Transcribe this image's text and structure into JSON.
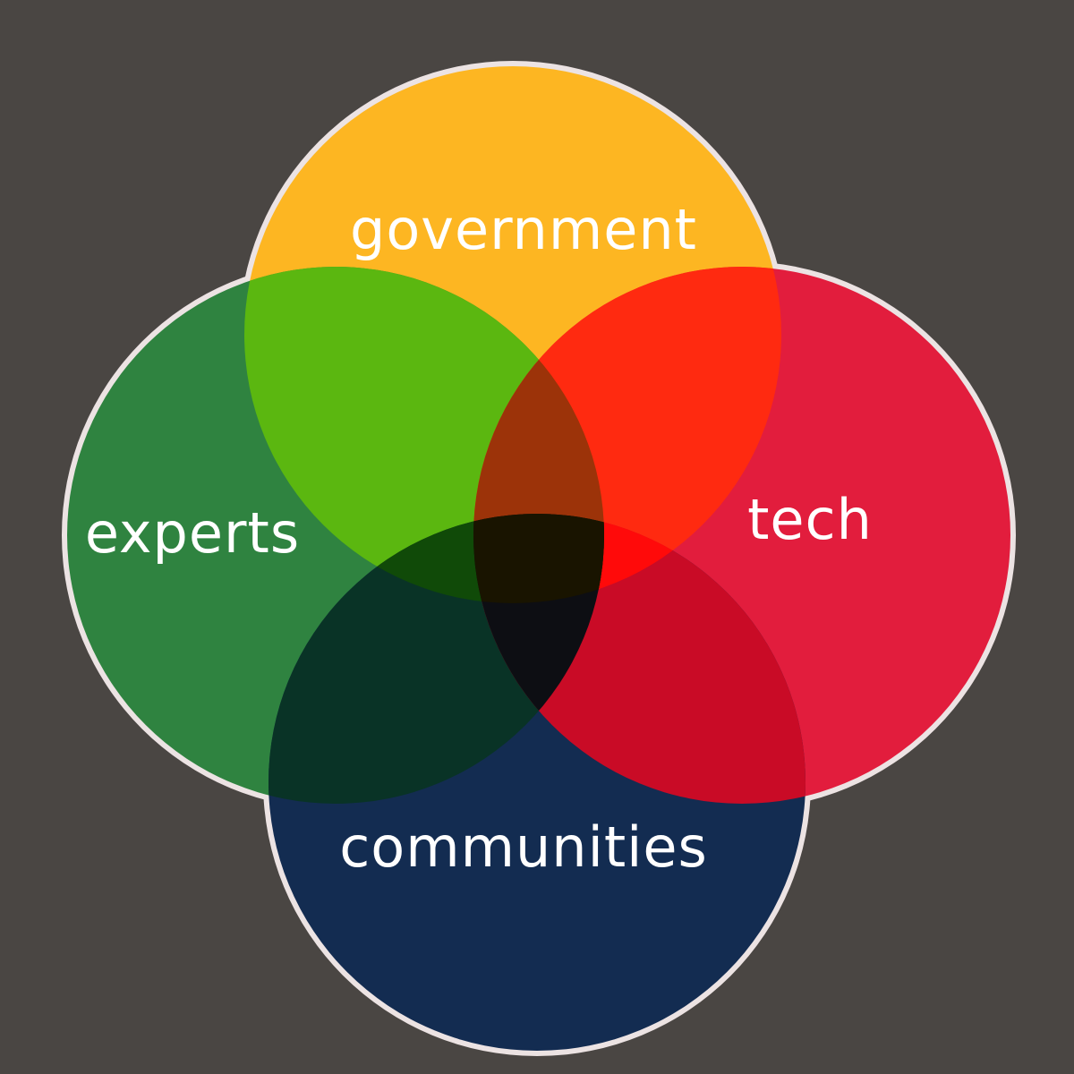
{
  "diagram": {
    "type": "venn",
    "background": "#4a4643",
    "outline_color": "#ece3e3",
    "sets": [
      {
        "id": "government",
        "label": "government",
        "color": "#fdb622"
      },
      {
        "id": "experts",
        "label": "experts",
        "color": "#2f8340"
      },
      {
        "id": "tech",
        "label": "tech",
        "color": "#e21d3d"
      },
      {
        "id": "communities",
        "label": "communities",
        "color": "#132c51"
      }
    ],
    "overlaps": [
      {
        "sets": [
          "government",
          "experts"
        ],
        "color": "#5bb710"
      },
      {
        "sets": [
          "government",
          "tech"
        ],
        "color": "#ff2a10"
      },
      {
        "sets": [
          "experts",
          "communities"
        ],
        "color": "#093326"
      },
      {
        "sets": [
          "tech",
          "communities"
        ],
        "color": "#c90b26"
      },
      {
        "sets": [
          "government",
          "experts",
          "tech"
        ],
        "color": "#9c3309"
      },
      {
        "sets": [
          "government",
          "tech",
          "communities"
        ],
        "color": "#ff0a0a"
      },
      {
        "sets": [
          "government",
          "experts",
          "communities"
        ],
        "color": "#104a08"
      },
      {
        "sets": [
          "experts",
          "tech",
          "communities"
        ],
        "color": "#0d0e13"
      },
      {
        "sets": [
          "government",
          "experts",
          "tech",
          "communities"
        ],
        "color": "#191400"
      }
    ]
  }
}
